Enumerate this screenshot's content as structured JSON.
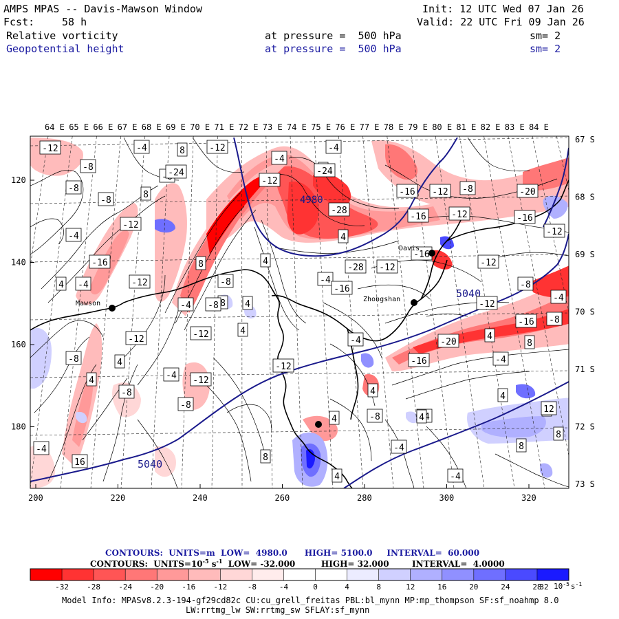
{
  "header": {
    "title": "AMPS MPAS -- Davis-Mawson Window",
    "fcst_label": "Fcst:",
    "fcst_value": "58 h",
    "init": "Init: 12 UTC Wed 07 Jan 26",
    "valid": "Valid: 22 UTC Fri 09 Jan 26",
    "fields": [
      {
        "name": "Relative vorticity",
        "pressure": "at pressure =  500 hPa",
        "sm": "sm= 2"
      },
      {
        "name": "Geopotential height",
        "pressure": "at pressure =  500 hPa",
        "sm": "sm= 2"
      }
    ]
  },
  "map": {
    "lon_labels": [
      "64 E",
      "65 E",
      "66 E",
      "67 E",
      "68 E",
      "69 E",
      "70 E",
      "71 E",
      "72 E",
      "73 E",
      "74 E",
      "75 E",
      "76 E",
      "77 E",
      "78 E",
      "79 E",
      "80 E",
      "81 E",
      "82 E",
      "83 E",
      "84 E"
    ],
    "lat_labels": [
      "67 S",
      "68 S",
      "69 S",
      "70 S",
      "71 S",
      "72 S",
      "73 S"
    ],
    "x_ticks": [
      "200",
      "220",
      "240",
      "260",
      "280",
      "300",
      "320"
    ],
    "y_ticks": [
      "120",
      "140",
      "160",
      "180"
    ],
    "stations": [
      "Mawson",
      "Davis",
      "Zhongshan"
    ],
    "height_contours": [
      "5040",
      "5040",
      "4980"
    ],
    "vort_labels": [
      "-12",
      "-4",
      "8",
      "-12",
      "-4",
      "-8",
      "-8",
      "-24",
      "8",
      "-4",
      "-8",
      "8",
      "-12",
      "-16",
      "-12",
      "-8",
      "-20",
      "-24",
      "-28",
      "-16",
      "-12",
      "-16",
      "-12",
      "-8",
      "-12",
      "-4",
      "8",
      "4",
      "-28",
      "-12",
      "-16",
      "-12",
      "-8",
      "-4",
      "4",
      "-16",
      "-4",
      "-12",
      "-8",
      "4",
      "8",
      "-4",
      "-16",
      "-4",
      "-8",
      "4",
      "4",
      "-12",
      "-12",
      "-20",
      "-12",
      "4",
      "-16",
      "-8",
      "8",
      "-8",
      "4",
      "-4",
      "-16",
      "-4",
      "4",
      "-8",
      "-4",
      "-12",
      "-8",
      "-12",
      "4",
      "4",
      "4",
      "8",
      "-4",
      "-8",
      "-4",
      "4",
      "12",
      "4",
      "8",
      "-4",
      "8",
      "4",
      "-4",
      "16"
    ]
  },
  "legend": {
    "contours1": {
      "label": "CONTOURS:",
      "units": "UNITS=m",
      "low": "LOW=",
      "low_val": "4980.0",
      "high": "HIGH=",
      "high_val": "5100.0",
      "interval": "INTERVAL=",
      "interval_val": "60.000"
    },
    "contours2": {
      "label": "CONTOURS:",
      "units": "UNITS=10",
      "units_exp": "-5",
      "units_tail": "s",
      "units_tail_exp": "-1",
      "low": "LOW=",
      "low_val": "-32.000",
      "high": "HIGH=",
      "high_val": "32.000",
      "interval": "INTERVAL=",
      "interval_val": "4.0000"
    },
    "colors": [
      "#ff0000",
      "#ff3333",
      "#ff5555",
      "#ff7777",
      "#ff9999",
      "#ffbbbb",
      "#ffd7d7",
      "#ffecec",
      "#ffffff",
      "#ffffff",
      "#ececff",
      "#d0d0ff",
      "#b0b0ff",
      "#9090ff",
      "#6f6fff",
      "#4a4aff",
      "#1a1aff"
    ],
    "ticks": [
      "-32",
      "-28",
      "-24",
      "-20",
      "-16",
      "-12",
      "-8",
      "-4",
      "0",
      "4",
      "8",
      "12",
      "16",
      "20",
      "24",
      "28",
      "32"
    ],
    "units": "10",
    "units_exp": "-5",
    "units_tail": "s",
    "units_tail_exp": "-1"
  },
  "footer": {
    "line1": "Model Info: MPASv8.2.3-194-gf29cd82c CU:cu_grell_freitas PBL:bl_mynn MP:mp_thompson SF:sf_noahmp 8.0",
    "line2": "LW:rrtmg_lw SW:rrtmg_sw SFLAY:sf_mynn"
  },
  "colors": {
    "height_contour": "#1a1a8c",
    "header_blue": "#1a1aa0"
  }
}
